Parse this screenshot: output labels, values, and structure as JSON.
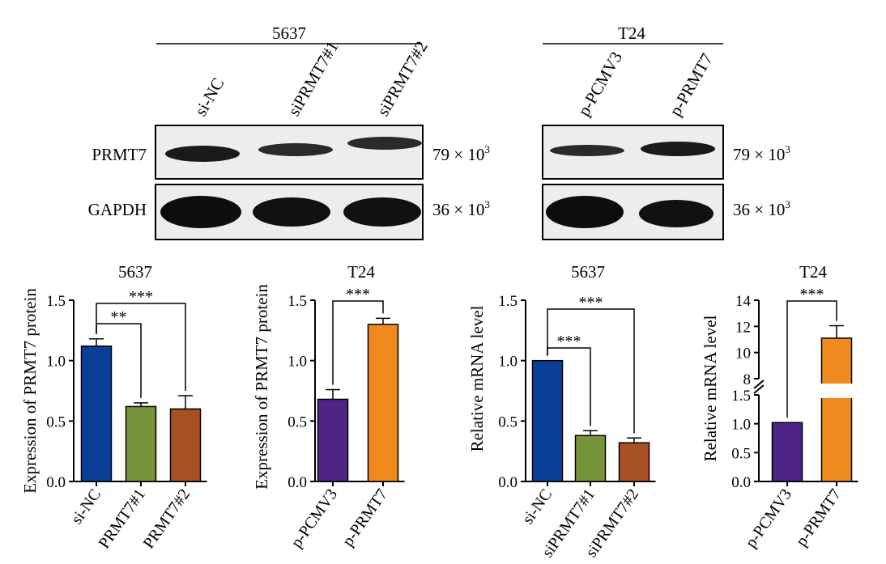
{
  "blots": {
    "left": {
      "cell_line": "5637",
      "lanes": [
        "si-NC",
        "siPRMT7#1",
        "siPRMT7#2"
      ],
      "rows": [
        {
          "name": "PRMT7",
          "mw": "79 × 10",
          "mw_exp": "3",
          "intensity": [
            1.0,
            0.85,
            0.8
          ]
        },
        {
          "name": "GAPDH",
          "mw": "36 × 10",
          "mw_exp": "3",
          "intensity": [
            1.0,
            1.0,
            1.0
          ]
        }
      ]
    },
    "right": {
      "cell_line": "T24",
      "lanes": [
        "p-PCMV3",
        "p-PRMT7"
      ],
      "rows": [
        {
          "name": "PRMT7",
          "mw": "79 × 10",
          "mw_exp": "3",
          "intensity": [
            0.75,
            1.0
          ]
        },
        {
          "name": "GAPDH",
          "mw": "36 × 10",
          "mw_exp": "3",
          "intensity": [
            1.0,
            1.0
          ]
        }
      ]
    }
  },
  "chart_data": [
    {
      "type": "bar",
      "title": "5637",
      "ylabel": "Expression of PRMT7 protein",
      "ylim": [
        0,
        1.5
      ],
      "yticks": [
        "0.0",
        "0.5",
        "1.0",
        "1.5"
      ],
      "categories": [
        "si-NC",
        "PRMT7#1",
        "PRMT7#2"
      ],
      "values": [
        1.12,
        0.62,
        0.6
      ],
      "errors": [
        0.06,
        0.03,
        0.11
      ],
      "colors": [
        "#0a3f98",
        "#76933a",
        "#a84f25"
      ],
      "significance": [
        {
          "from": 0,
          "to": 1,
          "label": "**"
        },
        {
          "from": 0,
          "to": 2,
          "label": "***"
        }
      ]
    },
    {
      "type": "bar",
      "title": "T24",
      "ylabel": "Expression of PRMT7 protein",
      "ylim": [
        0,
        1.5
      ],
      "yticks": [
        "0.0",
        "0.5",
        "1.0",
        "1.5"
      ],
      "categories": [
        "p-PCMV3",
        "p-PRMT7"
      ],
      "values": [
        0.68,
        1.3
      ],
      "errors": [
        0.08,
        0.05
      ],
      "colors": [
        "#4e2486",
        "#ef8a1f"
      ],
      "significance": [
        {
          "from": 0,
          "to": 1,
          "label": "***"
        }
      ]
    },
    {
      "type": "bar",
      "title": "5637",
      "ylabel": "Relative mRNA level",
      "ylim": [
        0,
        1.5
      ],
      "yticks": [
        "0.0",
        "0.5",
        "1.0",
        "1.5"
      ],
      "categories": [
        "si-NC",
        "siPRMT7#1",
        "siPRMT7#2"
      ],
      "values": [
        1.0,
        0.38,
        0.32
      ],
      "errors": [
        0.0,
        0.04,
        0.04
      ],
      "colors": [
        "#0a3f98",
        "#76933a",
        "#a84f25"
      ],
      "significance": [
        {
          "from": 0,
          "to": 1,
          "label": "***"
        },
        {
          "from": 0,
          "to": 2,
          "label": "***"
        }
      ]
    },
    {
      "type": "bar",
      "title": "T24",
      "ylabel": "Relative mRNA level",
      "broken_axis": {
        "lower": [
          0,
          1.5
        ],
        "upper": [
          8,
          14
        ]
      },
      "yticks": [
        "0.0",
        "0.5",
        "1.0",
        "1.5",
        "8",
        "10",
        "12",
        "14"
      ],
      "categories": [
        "p-PCMV3",
        "p-PRMT7"
      ],
      "values": [
        1.02,
        11.1
      ],
      "errors": [
        0.0,
        0.95
      ],
      "colors": [
        "#4e2486",
        "#ef8a1f"
      ],
      "significance": [
        {
          "from": 0,
          "to": 1,
          "label": "***"
        }
      ]
    }
  ]
}
